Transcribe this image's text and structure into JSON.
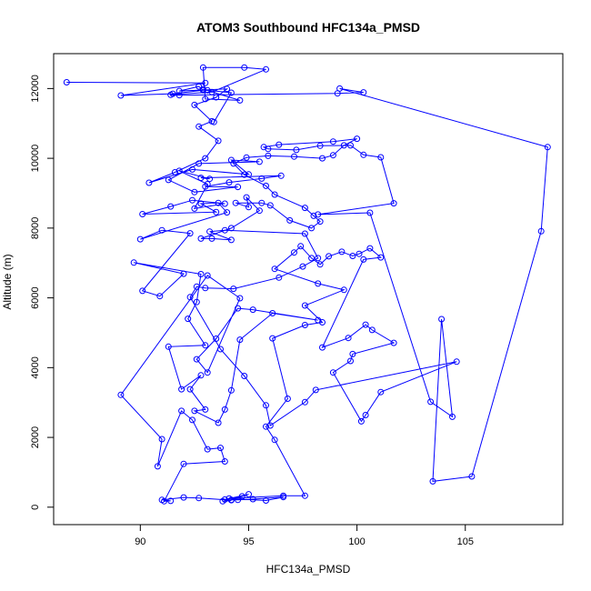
{
  "chart_data": {
    "type": "scatter",
    "title": "ATOM3 Southbound HFC134a_PMSD",
    "xlabel": "HFC134a_PMSD",
    "ylabel": "Altitude (m)",
    "xlim": [
      86.0,
      109.5
    ],
    "ylim": [
      -500,
      13000
    ],
    "x_ticks": [
      90,
      95,
      100,
      105
    ],
    "y_ticks": [
      0,
      2000,
      4000,
      6000,
      8000,
      10000,
      12000
    ],
    "marker": "open-circle",
    "connected": true,
    "color": "#0000ff",
    "series": [
      {
        "x": [
          86.6,
          93.0,
          89.1,
          91.5,
          92.9,
          92.7,
          91.8,
          94.0,
          93.5,
          92.5,
          93.3,
          92.7,
          93.6,
          93.0,
          91.6,
          90.4,
          92.4,
          95.0,
          94.2,
          95.5,
          92.7,
          91.3,
          92.5,
          94.5,
          93.0,
          94.1,
          95.6,
          96.5,
          92.8,
          93.2,
          91.8,
          93.1,
          92.5,
          93.9,
          92.4,
          91.4,
          90.1,
          93.5,
          92.8,
          93.6,
          94.0,
          90.0,
          91.0,
          92.3,
          90.1,
          90.9,
          92.0,
          89.7,
          92.8,
          92.6,
          92.2,
          93.0,
          91.3,
          91.9,
          92.8,
          92.3,
          93.0,
          92.5,
          93.6,
          93.9,
          94.2,
          94.6,
          96.1,
          98.2,
          95.2,
          94.5,
          93.5,
          92.6,
          93.1,
          94.6,
          93.1,
          89.1,
          91.0,
          90.8,
          91.9,
          92.4,
          93.1,
          93.7,
          93.9,
          92.0,
          91.1,
          91.4,
          91.0,
          92.0,
          92.7,
          94.2,
          93.8,
          94.2,
          94.7,
          95.0,
          93.9,
          94.5,
          95.2,
          96.6,
          95.8,
          94.1,
          96.6,
          97.6,
          96.2,
          95.8,
          96.8,
          96.1,
          97.6,
          98.4,
          97.6,
          99.4,
          98.2,
          96.2,
          97.1,
          97.4,
          97.9,
          98.3,
          98.7,
          99.3,
          99.8,
          100.1,
          100.6,
          101.1,
          100.3,
          98.4,
          99.6,
          100.4,
          100.7,
          101.7,
          99.8,
          99.7,
          98.9,
          100.2,
          100.4,
          101.1,
          104.6,
          98.1,
          97.6,
          96.0,
          95.8,
          94.8,
          93.7,
          92.3,
          92.6,
          93.0,
          94.3,
          96.4,
          97.5,
          98.2,
          97.6,
          93.9,
          93.2,
          94.2,
          93.3,
          92.8,
          94.2,
          95.5,
          94.9,
          95.0,
          94.4,
          95.6,
          96.0,
          96.9,
          97.9,
          98.3,
          98.0,
          97.6,
          96.2,
          95.8,
          94.8,
          94.3,
          94.9,
          95.9,
          97.1,
          98.4,
          98.9,
          99.4,
          100.0,
          98.9,
          96.4,
          95.7,
          95.9,
          97.2,
          98.3,
          99.7,
          100.3,
          101.1,
          101.7,
          98.2,
          100.6,
          103.4,
          104.4,
          103.9,
          103.5,
          105.3,
          108.5,
          108.8,
          99.2,
          100.3,
          99.1,
          91.8,
          91.4,
          93.3,
          95.8,
          94.8,
          92.9,
          93.0,
          94.6,
          92.9,
          93.1,
          94.2,
          93.4
        ],
        "y": [
          12180,
          12160,
          11800,
          11850,
          11950,
          12060,
          11930,
          11990,
          11750,
          11530,
          11060,
          10910,
          10500,
          10000,
          9600,
          9300,
          9680,
          9540,
          9950,
          9900,
          9850,
          9380,
          9030,
          9180,
          9190,
          9310,
          9420,
          9500,
          9440,
          9410,
          9640,
          9260,
          8560,
          8700,
          8800,
          8620,
          8400,
          8460,
          8700,
          8720,
          8450,
          7680,
          7940,
          7850,
          6200,
          6050,
          6690,
          7010,
          6680,
          5880,
          5400,
          4640,
          4600,
          3380,
          3780,
          3380,
          2800,
          2760,
          2420,
          2800,
          3350,
          4800,
          5560,
          5360,
          5660,
          5700,
          4830,
          4240,
          3860,
          5990,
          6640,
          3220,
          1950,
          1170,
          2760,
          2500,
          1660,
          1700,
          1310,
          1240,
          170,
          180,
          210,
          280,
          260,
          200,
          170,
          210,
          310,
          370,
          220,
          210,
          230,
          290,
          190,
          250,
          330,
          330,
          1930,
          2310,
          3110,
          4840,
          5220,
          5300,
          5780,
          6230,
          6410,
          6830,
          7300,
          7480,
          7140,
          6960,
          7190,
          7320,
          7200,
          7260,
          7420,
          7160,
          7100,
          4580,
          4850,
          5230,
          5080,
          4710,
          4390,
          4190,
          3860,
          2460,
          2640,
          3300,
          4170,
          3360,
          3010,
          2340,
          2920,
          3760,
          4530,
          6020,
          6320,
          6280,
          6260,
          6580,
          6900,
          7140,
          7840,
          7940,
          7900,
          7660,
          7700,
          7700,
          8000,
          8500,
          8880,
          8600,
          8720,
          8720,
          8650,
          8220,
          8000,
          8190,
          8350,
          8580,
          8960,
          9210,
          9530,
          9850,
          10020,
          10070,
          10050,
          10000,
          10090,
          10370,
          10560,
          10480,
          10390,
          10320,
          10270,
          10240,
          10360,
          10370,
          10100,
          10030,
          8710,
          8390,
          8440,
          3020,
          2590,
          5390,
          740,
          880,
          7910,
          10320,
          12000,
          11890,
          11860,
          11810,
          11820,
          11900,
          12550,
          12600,
          12600,
          11700,
          11660,
          11980,
          11950,
          11880,
          11040
        ]
      }
    ]
  }
}
